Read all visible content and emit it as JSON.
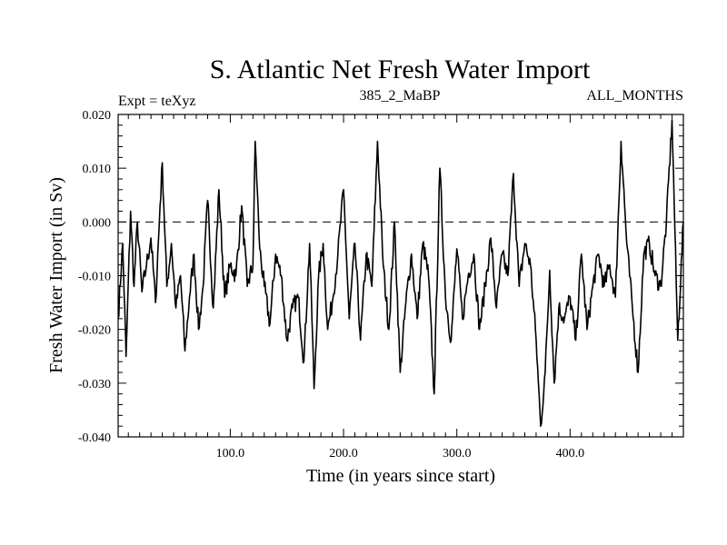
{
  "chart_data": {
    "type": "line",
    "title": "S. Atlantic Net Fresh Water Import",
    "subtitle_left": "Expt = teXyz",
    "subtitle_center": "385_2_MaBP",
    "subtitle_right": "ALL_MONTHS",
    "xlabel": "Time (in years since start)",
    "ylabel": "Fresh Water Import (in Sv)",
    "xlim": [
      1,
      500
    ],
    "ylim": [
      -0.04,
      0.02
    ],
    "x_ticks": [
      100,
      200,
      300,
      400
    ],
    "x_tick_labels": [
      "100.0",
      "200.0",
      "300.0",
      "400.0"
    ],
    "y_ticks": [
      -0.04,
      -0.03,
      -0.02,
      -0.01,
      0.0,
      0.01,
      0.02
    ],
    "y_tick_labels": [
      "-0.040",
      "-0.030",
      "-0.020",
      "-0.010",
      "0.000",
      "0.010",
      "0.020"
    ],
    "reference_line": {
      "y": 0.0,
      "style": "dashed"
    },
    "grid": false,
    "series": [
      {
        "x": [
          1,
          5,
          8,
          12,
          15,
          18,
          22,
          26,
          30,
          34,
          38,
          40,
          44,
          48,
          52,
          56,
          60,
          64,
          68,
          72,
          76,
          80,
          85,
          90,
          95,
          100,
          105,
          110,
          115,
          120,
          122,
          126,
          130,
          135,
          140,
          145,
          150,
          155,
          160,
          165,
          170,
          174,
          178,
          182,
          186,
          190,
          195,
          200,
          205,
          210,
          215,
          220,
          225,
          230,
          235,
          240,
          245,
          250,
          255,
          260,
          265,
          270,
          275,
          280,
          285,
          290,
          295,
          300,
          305,
          310,
          315,
          320,
          325,
          330,
          335,
          340,
          345,
          350,
          355,
          360,
          365,
          370,
          374,
          378,
          382,
          386,
          390,
          395,
          400,
          405,
          410,
          415,
          420,
          425,
          430,
          435,
          440,
          445,
          450,
          455,
          460,
          465,
          470,
          475,
          480,
          485,
          490,
          495,
          500
        ],
        "y": [
          -0.018,
          -0.004,
          -0.025,
          0.002,
          -0.012,
          0.0,
          -0.013,
          -0.008,
          -0.003,
          -0.015,
          0.003,
          0.011,
          -0.012,
          -0.004,
          -0.016,
          -0.01,
          -0.024,
          -0.014,
          -0.006,
          -0.02,
          -0.012,
          0.004,
          -0.016,
          0.006,
          -0.014,
          -0.008,
          -0.01,
          0.003,
          -0.012,
          -0.008,
          0.015,
          -0.005,
          -0.012,
          -0.019,
          -0.006,
          -0.01,
          -0.022,
          -0.016,
          -0.014,
          -0.026,
          -0.004,
          -0.031,
          -0.01,
          -0.004,
          -0.02,
          -0.015,
          -0.006,
          0.006,
          -0.018,
          -0.004,
          -0.022,
          -0.006,
          -0.012,
          0.015,
          -0.008,
          -0.02,
          0.0,
          -0.028,
          -0.015,
          -0.006,
          -0.018,
          -0.004,
          -0.01,
          -0.032,
          0.01,
          -0.014,
          -0.022,
          -0.005,
          -0.018,
          -0.01,
          -0.006,
          -0.02,
          -0.012,
          -0.003,
          -0.016,
          -0.006,
          -0.01,
          0.009,
          -0.012,
          -0.004,
          -0.008,
          -0.022,
          -0.038,
          -0.028,
          -0.009,
          -0.03,
          -0.016,
          -0.018,
          -0.014,
          -0.022,
          -0.006,
          -0.02,
          -0.012,
          -0.006,
          -0.012,
          -0.008,
          -0.014,
          0.015,
          -0.004,
          -0.016,
          -0.028,
          -0.006,
          -0.004,
          -0.01,
          -0.012,
          0.0,
          0.019,
          -0.022,
          0.0
        ]
      }
    ]
  }
}
